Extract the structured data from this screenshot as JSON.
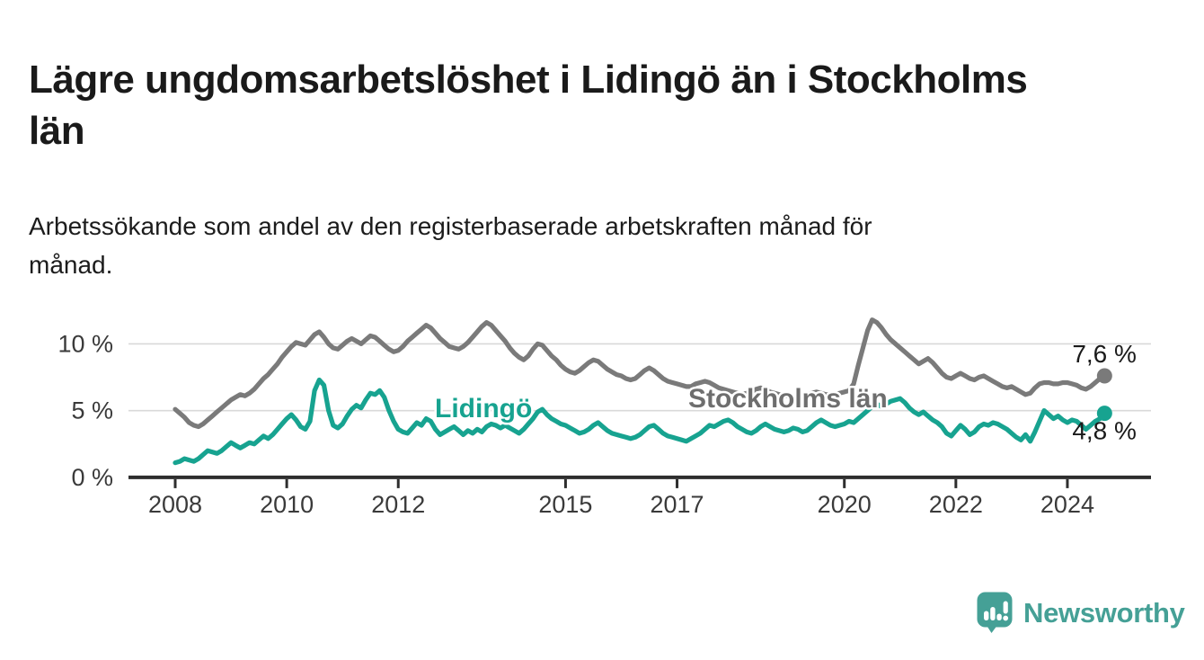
{
  "header": {
    "title_lines": [
      "Lägre ungdomsarbetslöshet i Lidingö än i Stockholms",
      "län"
    ],
    "subtitle_lines": [
      "Arbetssökande som andel av den registerbaserade arbetskraften månad för",
      "månad."
    ]
  },
  "branding": {
    "logo_text": "Newsworthy",
    "logo_icon": "bar-chart-speech-bubble-icon",
    "logo_color": "#45a096"
  },
  "colors": {
    "stockholm_line": "#7a7a7a",
    "lidingo_line": "#17a390",
    "stockholm_label": "#6e6e6e",
    "axis": "#2e2e2e",
    "gridline": "#d9d9d9",
    "tick_text": "#3a3a3a",
    "end_label_text": "#1a1a1a"
  },
  "chart_data": {
    "type": "line",
    "unit": "%",
    "x_start": 2008.0,
    "x_step_years": 0.0833333,
    "ylim": [
      0,
      12.5
    ],
    "grid": "horizontal",
    "y_ticks": [
      {
        "value": 0,
        "label": "0 %"
      },
      {
        "value": 5,
        "label": "5 %"
      },
      {
        "value": 10,
        "label": "10 %"
      }
    ],
    "x_ticks": [
      {
        "value": 2008,
        "label": "2008"
      },
      {
        "value": 2010,
        "label": "2010"
      },
      {
        "value": 2012,
        "label": "2012"
      },
      {
        "value": 2015,
        "label": "2015"
      },
      {
        "value": 2017,
        "label": "2017"
      },
      {
        "value": 2020,
        "label": "2020"
      },
      {
        "value": 2022,
        "label": "2022"
      },
      {
        "value": 2024,
        "label": "2024"
      }
    ],
    "series": [
      {
        "name": "Stockholms län",
        "final_value": 7.6,
        "final_label": "7,6 %",
        "values": [
          5.1,
          4.8,
          4.5,
          4.1,
          3.9,
          3.8,
          4.0,
          4.3,
          4.6,
          4.9,
          5.2,
          5.5,
          5.8,
          6.0,
          6.2,
          6.1,
          6.3,
          6.6,
          7.0,
          7.4,
          7.7,
          8.1,
          8.5,
          9.0,
          9.4,
          9.8,
          10.1,
          10.0,
          9.9,
          10.3,
          10.7,
          10.9,
          10.5,
          10.0,
          9.7,
          9.6,
          9.9,
          10.2,
          10.4,
          10.2,
          10.0,
          10.3,
          10.6,
          10.5,
          10.2,
          9.9,
          9.6,
          9.4,
          9.5,
          9.8,
          10.2,
          10.5,
          10.8,
          11.1,
          11.4,
          11.2,
          10.8,
          10.4,
          10.1,
          9.8,
          9.7,
          9.6,
          9.8,
          10.1,
          10.5,
          10.9,
          11.3,
          11.6,
          11.4,
          11.0,
          10.6,
          10.2,
          9.7,
          9.3,
          9.0,
          8.8,
          9.1,
          9.6,
          10.0,
          9.9,
          9.5,
          9.1,
          8.8,
          8.4,
          8.1,
          7.9,
          7.8,
          8.0,
          8.3,
          8.6,
          8.8,
          8.7,
          8.4,
          8.1,
          7.9,
          7.7,
          7.6,
          7.4,
          7.3,
          7.4,
          7.7,
          8.0,
          8.2,
          8.0,
          7.7,
          7.4,
          7.2,
          7.1,
          7.0,
          6.9,
          6.8,
          6.8,
          7.0,
          7.1,
          7.2,
          7.1,
          6.9,
          6.7,
          6.6,
          6.5,
          6.4,
          6.3,
          6.2,
          6.3,
          6.4,
          6.6,
          6.7,
          6.6,
          6.4,
          6.3,
          6.2,
          6.1,
          6.1,
          6.0,
          6.0,
          6.1,
          6.2,
          6.3,
          6.4,
          6.3,
          6.2,
          6.2,
          6.2,
          6.3,
          6.4,
          6.5,
          7.0,
          8.4,
          9.7,
          11.0,
          11.8,
          11.6,
          11.2,
          10.7,
          10.3,
          10.0,
          9.7,
          9.4,
          9.1,
          8.8,
          8.5,
          8.7,
          8.9,
          8.6,
          8.2,
          7.8,
          7.5,
          7.4,
          7.6,
          7.8,
          7.6,
          7.4,
          7.3,
          7.5,
          7.6,
          7.4,
          7.2,
          7.0,
          6.8,
          6.7,
          6.8,
          6.6,
          6.4,
          6.2,
          6.3,
          6.7,
          7.0,
          7.1,
          7.1,
          7.0,
          7.0,
          7.1,
          7.1,
          7.0,
          6.9,
          6.7,
          6.6,
          6.8,
          7.1,
          7.4,
          7.6
        ]
      },
      {
        "name": "Lidingö",
        "final_value": 4.8,
        "final_label": "4,8 %",
        "values": [
          1.1,
          1.2,
          1.4,
          1.3,
          1.2,
          1.4,
          1.7,
          2.0,
          1.9,
          1.8,
          2.0,
          2.3,
          2.6,
          2.4,
          2.2,
          2.4,
          2.6,
          2.5,
          2.8,
          3.1,
          2.9,
          3.2,
          3.6,
          4.0,
          4.4,
          4.7,
          4.3,
          3.8,
          3.6,
          4.2,
          6.5,
          7.3,
          6.9,
          5.0,
          3.9,
          3.7,
          4.0,
          4.6,
          5.1,
          5.4,
          5.2,
          5.8,
          6.3,
          6.2,
          6.5,
          6.0,
          5.0,
          4.2,
          3.6,
          3.4,
          3.3,
          3.7,
          4.1,
          3.9,
          4.4,
          4.2,
          3.6,
          3.2,
          3.4,
          3.6,
          3.8,
          3.5,
          3.2,
          3.5,
          3.3,
          3.6,
          3.4,
          3.8,
          4.0,
          3.9,
          3.7,
          3.9,
          3.7,
          3.5,
          3.3,
          3.6,
          4.0,
          4.4,
          4.9,
          5.1,
          4.7,
          4.4,
          4.2,
          4.0,
          3.9,
          3.7,
          3.5,
          3.3,
          3.4,
          3.6,
          3.9,
          4.1,
          3.8,
          3.5,
          3.3,
          3.2,
          3.1,
          3.0,
          2.9,
          3.0,
          3.2,
          3.5,
          3.8,
          3.9,
          3.6,
          3.3,
          3.1,
          3.0,
          2.9,
          2.8,
          2.7,
          2.9,
          3.1,
          3.3,
          3.6,
          3.9,
          3.8,
          4.0,
          4.2,
          4.3,
          4.1,
          3.8,
          3.6,
          3.4,
          3.3,
          3.5,
          3.8,
          4.0,
          3.8,
          3.6,
          3.5,
          3.4,
          3.5,
          3.7,
          3.6,
          3.4,
          3.5,
          3.8,
          4.1,
          4.3,
          4.1,
          3.9,
          3.8,
          3.9,
          4.0,
          4.2,
          4.1,
          4.4,
          4.7,
          5.0,
          5.3,
          5.5,
          5.3,
          5.5,
          5.7,
          5.8,
          5.9,
          5.6,
          5.2,
          4.9,
          4.7,
          4.9,
          4.6,
          4.3,
          4.1,
          3.8,
          3.3,
          3.1,
          3.5,
          3.9,
          3.6,
          3.2,
          3.4,
          3.8,
          4.0,
          3.9,
          4.1,
          4.0,
          3.8,
          3.6,
          3.3,
          3.0,
          2.8,
          3.2,
          2.7,
          3.4,
          4.2,
          5.0,
          4.7,
          4.4,
          4.6,
          4.3,
          4.1,
          4.3,
          4.2,
          3.9,
          3.6,
          3.9,
          4.2,
          4.4,
          4.8
        ]
      }
    ]
  }
}
